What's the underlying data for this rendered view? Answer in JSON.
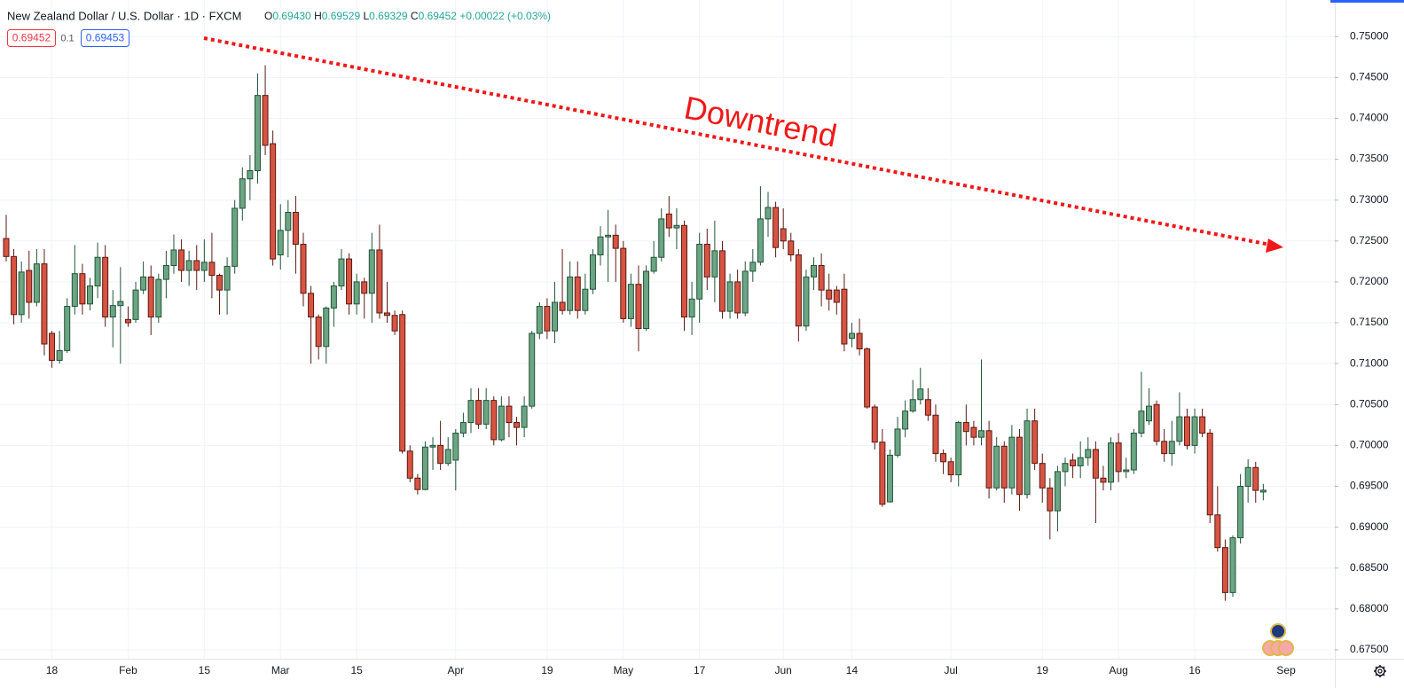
{
  "chart_data": {
    "type": "candlestick",
    "title": "New Zealand Dollar / U.S. Dollar · 1D · FXCM",
    "readout": [
      {
        "label": "O",
        "value": "0.69430"
      },
      {
        "label": "H",
        "value": "0.69529"
      },
      {
        "label": "L",
        "value": "0.69329"
      },
      {
        "label": "C",
        "value": "0.69452"
      }
    ],
    "change": "+0.00022 (+0.03%)",
    "price_tags": {
      "bid": "0.69452",
      "spread": "0.1",
      "ask": "0.69453"
    },
    "annotation": "Downtrend",
    "up_color": "#6ba583",
    "up_border": "#225437",
    "down_color": "#d75442",
    "down_border": "#5b1a13",
    "grid": true,
    "categories": [
      null,
      null,
      null,
      null,
      null,
      null,
      "18",
      null,
      null,
      null,
      null,
      null,
      null,
      null,
      null,
      null,
      "Feb",
      null,
      null,
      null,
      null,
      null,
      null,
      null,
      null,
      null,
      "15",
      null,
      null,
      null,
      null,
      null,
      null,
      null,
      null,
      null,
      "Mar",
      null,
      null,
      null,
      null,
      null,
      null,
      null,
      null,
      null,
      "15",
      null,
      null,
      null,
      null,
      null,
      null,
      null,
      null,
      null,
      null,
      null,
      null,
      "Apr",
      null,
      null,
      null,
      null,
      null,
      null,
      null,
      null,
      null,
      null,
      null,
      "19",
      null,
      null,
      null,
      null,
      null,
      null,
      null,
      null,
      null,
      "May",
      null,
      null,
      null,
      null,
      null,
      null,
      null,
      null,
      null,
      "17",
      null,
      null,
      null,
      null,
      null,
      null,
      null,
      null,
      null,
      null,
      "Jun",
      null,
      null,
      null,
      null,
      null,
      null,
      null,
      null,
      "14",
      null,
      null,
      null,
      null,
      null,
      null,
      null,
      null,
      null,
      null,
      null,
      null,
      "Jul",
      null,
      null,
      null,
      null,
      null,
      null,
      null,
      null,
      null,
      null,
      null,
      "19",
      null,
      null,
      null,
      null,
      null,
      null,
      null,
      null,
      null,
      "Aug",
      null,
      null,
      null,
      null,
      null,
      null,
      null,
      null,
      null,
      "16",
      null,
      null,
      null,
      null,
      null,
      null,
      null,
      null,
      null,
      null,
      null,
      "Sep"
    ],
    "open": [
      0.7253,
      0.7231,
      0.716,
      0.7214,
      0.7175,
      0.7222,
      0.7137,
      0.7104,
      0.7116,
      0.717,
      0.721,
      0.7173,
      0.7195,
      0.723,
      0.7157,
      0.7171,
      0.7154,
      0.7154,
      0.719,
      0.7206,
      0.7157,
      0.7203,
      0.722,
      0.7239,
      0.7214,
      0.7226,
      0.7214,
      0.7224,
      0.7208,
      0.719,
      0.7219,
      0.729,
      0.7326,
      0.7336,
      0.7428,
      0.7369,
      0.7233,
      0.7263,
      0.7285,
      0.7246,
      0.7186,
      0.7157,
      0.7121,
      0.7168,
      0.7195,
      0.7228,
      0.7173,
      0.72,
      0.7186,
      0.7239,
      0.7162,
      0.7159,
      0.716,
      0.6993,
      0.696,
      0.6946,
      0.6998,
      0.7,
      0.6978,
      0.6982,
      0.7015,
      0.7028,
      0.7055,
      0.7026,
      0.7055,
      0.7007,
      0.7048,
      0.7028,
      0.7022,
      0.7048,
      0.7137,
      0.717,
      0.714,
      0.7175,
      0.7165,
      0.7206,
      0.7165,
      0.7191,
      0.7233,
      0.7255,
      0.7257,
      0.7241,
      0.7155,
      0.7197,
      0.7143,
      0.7213,
      0.723,
      0.7283,
      0.7266,
      0.7269,
      0.7157,
      0.7179,
      0.7246,
      0.7206,
      0.7238,
      0.7164,
      0.72,
      0.7162,
      0.7213,
      0.7224,
      0.7277,
      0.7291,
      0.7265,
      0.725,
      0.7233,
      0.7146,
      0.7206,
      0.722,
      0.719,
      0.719,
      0.7191,
      0.7131,
      0.7137,
      0.7118,
      0.7047,
      0.7004,
      0.6931,
      0.6988,
      0.702,
      0.7042,
      0.7056,
      0.7056,
      0.7037,
      0.699,
      0.698,
      0.6964,
      0.7028,
      0.7022,
      0.701,
      0.7018,
      0.6948,
      0.6999,
      0.6948,
      0.701,
      0.694,
      0.703,
      0.6978,
      0.6948,
      0.692,
      0.6968,
      0.6982,
      0.6975,
      0.6985,
      0.6995,
      0.696,
      0.6955,
      0.7003,
      0.6968,
      0.697,
      0.7015,
      0.703,
      0.705,
      0.7005,
      0.699,
      0.7005,
      0.7035,
      0.7,
      0.7035,
      0.7015,
      0.6915,
      0.6875,
      0.682,
      0.6887,
      0.695,
      0.6973,
      0.6943,
      null,
      null,
      null
    ],
    "high": [
      0.7282,
      0.724,
      0.7225,
      0.7238,
      0.724,
      0.724,
      0.714,
      0.714,
      0.718,
      0.7245,
      0.7222,
      0.7205,
      0.7248,
      0.7245,
      0.719,
      0.7218,
      0.717,
      0.72,
      0.7225,
      0.722,
      0.721,
      0.7238,
      0.7258,
      0.7252,
      0.7238,
      0.7245,
      0.7252,
      0.726,
      0.721,
      0.723,
      0.73,
      0.734,
      0.7355,
      0.7455,
      0.7465,
      0.7385,
      0.7295,
      0.73,
      0.7305,
      0.726,
      0.7195,
      0.716,
      0.717,
      0.72,
      0.724,
      0.7235,
      0.721,
      0.7205,
      0.726,
      0.727,
      0.72,
      0.7165,
      0.7165,
      0.7,
      0.6965,
      0.7005,
      0.701,
      0.703,
      0.701,
      0.702,
      0.704,
      0.707,
      0.707,
      0.707,
      0.706,
      0.706,
      0.706,
      0.7035,
      0.706,
      0.714,
      0.7175,
      0.718,
      0.72,
      0.724,
      0.7225,
      0.7225,
      0.721,
      0.724,
      0.7268,
      0.7288,
      0.727,
      0.725,
      0.721,
      0.722,
      0.722,
      0.725,
      0.729,
      0.7305,
      0.729,
      0.7275,
      0.72,
      0.726,
      0.7265,
      0.7275,
      0.725,
      0.721,
      0.7215,
      0.7225,
      0.724,
      0.7317,
      0.731,
      0.7298,
      0.729,
      0.726,
      0.724,
      0.7215,
      0.723,
      0.7235,
      0.721,
      0.7195,
      0.721,
      0.715,
      0.7155,
      0.712,
      0.705,
      0.702,
      0.6995,
      0.7035,
      0.7055,
      0.708,
      0.7095,
      0.707,
      0.705,
      0.6995,
      0.6985,
      0.703,
      0.705,
      0.703,
      0.7105,
      0.703,
      0.701,
      0.7005,
      0.7025,
      0.702,
      0.7045,
      0.7045,
      0.699,
      0.696,
      0.6975,
      0.6985,
      0.699,
      0.7005,
      0.701,
      0.7005,
      0.6975,
      0.701,
      0.7015,
      0.6985,
      0.702,
      0.709,
      0.707,
      0.7055,
      0.702,
      0.703,
      0.7065,
      0.7045,
      0.7045,
      0.7045,
      0.702,
      0.695,
      0.6885,
      0.689,
      0.6965,
      0.6983,
      0.698,
      0.69529,
      null,
      null,
      null
    ],
    "low": [
      0.7225,
      0.7148,
      0.715,
      0.7155,
      0.717,
      0.711,
      0.7095,
      0.71,
      0.7113,
      0.716,
      0.716,
      0.7165,
      0.718,
      0.7145,
      0.712,
      0.71,
      0.7145,
      0.715,
      0.7185,
      0.7135,
      0.715,
      0.718,
      0.721,
      0.72,
      0.7195,
      0.719,
      0.72,
      0.718,
      0.716,
      0.716,
      0.721,
      0.7275,
      0.73,
      0.732,
      0.7355,
      0.722,
      0.7215,
      0.723,
      0.721,
      0.717,
      0.71,
      0.7105,
      0.71,
      0.7145,
      0.719,
      0.716,
      0.716,
      0.7155,
      0.715,
      0.7155,
      0.715,
      0.7135,
      0.699,
      0.6955,
      0.694,
      0.6945,
      0.697,
      0.697,
      0.6975,
      0.6945,
      0.701,
      0.7015,
      0.702,
      0.702,
      0.7,
      0.7005,
      0.701,
      0.7,
      0.701,
      0.7045,
      0.713,
      0.713,
      0.7125,
      0.716,
      0.716,
      0.7155,
      0.716,
      0.7185,
      0.722,
      0.72,
      0.72,
      0.715,
      0.7145,
      0.7115,
      0.714,
      0.721,
      0.7225,
      0.7255,
      0.724,
      0.714,
      0.7135,
      0.715,
      0.719,
      0.7175,
      0.7155,
      0.7155,
      0.7155,
      0.7158,
      0.72,
      0.722,
      0.7255,
      0.723,
      0.724,
      0.7225,
      0.7127,
      0.714,
      0.719,
      0.717,
      0.7165,
      0.716,
      0.7115,
      0.712,
      0.711,
      0.7045,
      0.6995,
      0.6925,
      0.693,
      0.6985,
      0.701,
      0.704,
      0.705,
      0.703,
      0.698,
      0.6965,
      0.6955,
      0.695,
      0.7,
      0.7,
      0.7,
      0.6935,
      0.6945,
      0.693,
      0.694,
      0.692,
      0.6935,
      0.697,
      0.693,
      0.6885,
      0.6895,
      0.695,
      0.696,
      0.696,
      0.6975,
      0.6905,
      0.6945,
      0.6945,
      0.6955,
      0.696,
      0.6965,
      0.701,
      0.7025,
      0.7,
      0.698,
      0.6975,
      0.7,
      0.6995,
      0.699,
      0.701,
      0.6905,
      0.687,
      0.681,
      0.6815,
      0.688,
      0.693,
      0.693,
      0.69329,
      null,
      null,
      null
    ],
    "close": [
      0.7231,
      0.716,
      0.7212,
      0.7175,
      0.7222,
      0.7124,
      0.7104,
      0.7116,
      0.717,
      0.721,
      0.7173,
      0.7195,
      0.723,
      0.7157,
      0.7171,
      0.7176,
      0.715,
      0.719,
      0.7206,
      0.7157,
      0.7203,
      0.722,
      0.7239,
      0.7214,
      0.7226,
      0.7214,
      0.7224,
      0.7208,
      0.719,
      0.7219,
      0.729,
      0.7326,
      0.7336,
      0.7428,
      0.7367,
      0.7228,
      0.7263,
      0.7285,
      0.7246,
      0.7186,
      0.7157,
      0.7121,
      0.7168,
      0.7195,
      0.7228,
      0.7173,
      0.72,
      0.7186,
      0.7239,
      0.7162,
      0.7159,
      0.714,
      0.6993,
      0.696,
      0.6946,
      0.6998,
      0.7,
      0.6978,
      0.6995,
      0.7015,
      0.7028,
      0.7055,
      0.7026,
      0.7055,
      0.7007,
      0.7048,
      0.7028,
      0.7022,
      0.7048,
      0.7137,
      0.717,
      0.714,
      0.7175,
      0.7165,
      0.7206,
      0.7165,
      0.7191,
      0.7233,
      0.7255,
      0.7257,
      0.7241,
      0.7155,
      0.7197,
      0.7143,
      0.7213,
      0.723,
      0.7277,
      0.7266,
      0.7269,
      0.7157,
      0.7179,
      0.7246,
      0.7206,
      0.7238,
      0.7164,
      0.72,
      0.7162,
      0.7213,
      0.7224,
      0.7277,
      0.7291,
      0.7242,
      0.725,
      0.7233,
      0.7146,
      0.7206,
      0.722,
      0.719,
      0.7179,
      0.7175,
      0.7124,
      0.7137,
      0.7118,
      0.7047,
      0.7004,
      0.6928,
      0.6988,
      0.702,
      0.7042,
      0.7056,
      0.7069,
      0.7037,
      0.699,
      0.698,
      0.6964,
      0.7028,
      0.7017,
      0.701,
      0.7018,
      0.6948,
      0.6999,
      0.6948,
      0.701,
      0.694,
      0.703,
      0.6978,
      0.6948,
      0.692,
      0.6968,
      0.6978,
      0.6975,
      0.6985,
      0.6995,
      0.696,
      0.6955,
      0.7003,
      0.6968,
      0.697,
      0.7015,
      0.7042,
      0.7048,
      0.7005,
      0.699,
      0.7005,
      0.7035,
      0.7,
      0.7035,
      0.7015,
      0.6915,
      0.6875,
      0.682,
      0.6887,
      0.695,
      0.6973,
      0.6945,
      0.69452,
      null,
      null,
      null
    ],
    "ylim": [
      0.67391,
      0.75447
    ],
    "yticks": [
      {
        "value": 0.675,
        "label": "0.67500"
      },
      {
        "value": 0.68,
        "label": "0.68000"
      },
      {
        "value": 0.685,
        "label": "0.68500"
      },
      {
        "value": 0.69,
        "label": "0.69000"
      },
      {
        "value": 0.695,
        "label": "0.69500"
      },
      {
        "value": 0.7,
        "label": "0.70000"
      },
      {
        "value": 0.705,
        "label": "0.70500"
      },
      {
        "value": 0.71,
        "label": "0.71000"
      },
      {
        "value": 0.715,
        "label": "0.71500"
      },
      {
        "value": 0.72,
        "label": "0.72000"
      },
      {
        "value": 0.725,
        "label": "0.72500"
      },
      {
        "value": 0.73,
        "label": "0.73000"
      },
      {
        "value": 0.735,
        "label": "0.73500"
      },
      {
        "value": 0.74,
        "label": "0.74000"
      },
      {
        "value": 0.745,
        "label": "0.74500"
      },
      {
        "value": 0.75,
        "label": "0.75000"
      }
    ]
  }
}
